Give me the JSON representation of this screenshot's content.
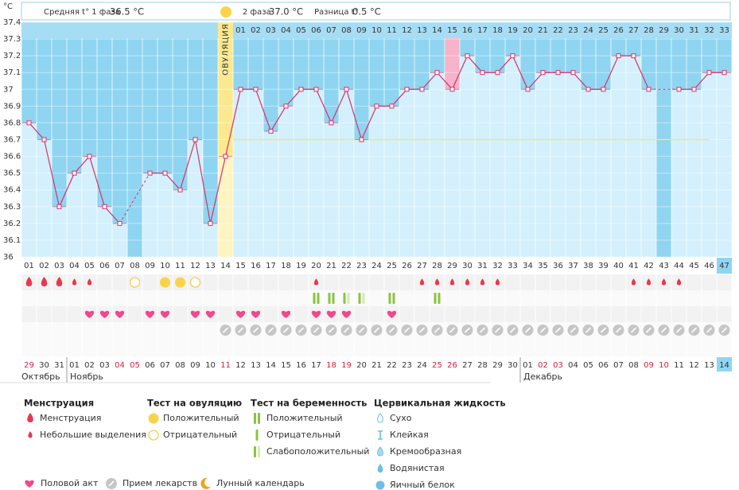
{
  "header": {
    "phase1_label": "Средняя t° 1 фаза",
    "phase1_value": "36.5 °C",
    "phase2_label": "2 фаза",
    "phase2_value": "37.0 °C",
    "diff_label": "Разница t°",
    "diff_value": "0.5 °C"
  },
  "chart_data": {
    "type": "line",
    "y_unit": "°C",
    "ovulation_label": "ОВУЛЯЦИЯ",
    "ylim": [
      36,
      37.4
    ],
    "yticks": [
      36,
      36.1,
      36.2,
      36.3,
      36.4,
      36.5,
      36.6,
      36.7,
      36.8,
      36.9,
      37,
      37.1,
      37.2,
      37.3,
      37.4
    ],
    "coverline": 36.7,
    "ovulation_index": 13,
    "highlight_index": 28,
    "current_index": 46,
    "days": [
      "01",
      "02",
      "03",
      "04",
      "05",
      "06",
      "07",
      "08",
      "09",
      "10",
      "11",
      "12",
      "13",
      "14",
      "15",
      "16",
      "17",
      "18",
      "19",
      "20",
      "21",
      "22",
      "23",
      "24",
      "25",
      "26",
      "27",
      "28",
      "29",
      "30",
      "31",
      "32",
      "33",
      "34",
      "35",
      "36",
      "37",
      "38",
      "39",
      "40",
      "41",
      "42",
      "43",
      "44",
      "45",
      "46",
      "47"
    ],
    "phase2_days": [
      "01",
      "02",
      "03",
      "04",
      "05",
      "06",
      "07",
      "08",
      "09",
      "10",
      "11",
      "12",
      "13",
      "14",
      "15",
      "16",
      "17",
      "18",
      "19",
      "20",
      "21",
      "22",
      "23",
      "24",
      "25",
      "26",
      "27",
      "28",
      "29",
      "30",
      "31",
      "32",
      "33"
    ],
    "series": [
      {
        "name": "t°",
        "color": "#d8306a",
        "values": [
          36.8,
          36.7,
          36.3,
          36.5,
          36.6,
          36.3,
          36.2,
          null,
          36.5,
          36.5,
          36.4,
          36.7,
          36.2,
          36.6,
          37.0,
          37.0,
          36.75,
          36.9,
          37.0,
          37.0,
          36.8,
          37.0,
          36.7,
          36.9,
          36.9,
          37.0,
          37.0,
          37.1,
          37.0,
          37.2,
          37.1,
          37.1,
          37.2,
          37.0,
          37.1,
          37.1,
          37.1,
          37.0,
          37.0,
          37.2,
          37.2,
          37.0,
          null,
          37.0,
          37.0,
          37.1,
          37.1
        ]
      }
    ],
    "months": [
      {
        "name": "Октябрь",
        "dates": [
          "29",
          "30",
          "31"
        ],
        "red": [
          0
        ]
      },
      {
        "name": "Ноябрь",
        "dates": [
          "01",
          "02",
          "03",
          "04",
          "05",
          "06",
          "07",
          "08",
          "09",
          "10",
          "11",
          "12",
          "13",
          "14",
          "15",
          "16",
          "17",
          "18",
          "19",
          "20",
          "21",
          "22",
          "23",
          "24",
          "25",
          "26",
          "27",
          "28",
          "29",
          "30"
        ],
        "red": [
          3,
          4,
          10,
          17,
          18,
          24,
          25
        ]
      },
      {
        "name": "Декабрь",
        "dates": [
          "01",
          "02",
          "03",
          "04",
          "05",
          "06",
          "07",
          "08",
          "09",
          "10",
          "11",
          "12",
          "13",
          "14"
        ],
        "red": [
          1,
          2,
          8,
          9
        ]
      }
    ],
    "marks": {
      "menstruation": [
        0,
        1,
        2
      ],
      "spotting": [
        3,
        4,
        19,
        26,
        27,
        28,
        29,
        30,
        31,
        40,
        41,
        42,
        43
      ],
      "ovulation_positive": [
        9,
        10
      ],
      "ovulation_negative": [
        7,
        11
      ],
      "pregnancy_positive": [
        19,
        20,
        24,
        27
      ],
      "pregnancy_weak": [
        21,
        22
      ],
      "intercourse": [
        4,
        5,
        6,
        8,
        9,
        11,
        12,
        14,
        15,
        17,
        19,
        20,
        21,
        24
      ],
      "medication": [
        13,
        14,
        15,
        16,
        17,
        18,
        19,
        20,
        21,
        22,
        23,
        24,
        25,
        26,
        27,
        28,
        29,
        30,
        31,
        32,
        33,
        34,
        35,
        36,
        37,
        38,
        39,
        40,
        41,
        42,
        43,
        44,
        45,
        46
      ]
    }
  },
  "legend": {
    "groups": [
      {
        "title": "Менструация",
        "items": [
          "Менструация",
          "Небольшие выделения"
        ]
      },
      {
        "title": "Тест на овуляцию",
        "items": [
          "Положительный",
          "Отрицательный"
        ]
      },
      {
        "title": "Тест на беременность",
        "items": [
          "Положительный",
          "Отрицательный",
          "Слабоположительный"
        ]
      },
      {
        "title": "Цервикальная жидкость",
        "items": [
          "Сухо",
          "Клейкая",
          "Кремообразная",
          "Водянистая",
          "Яичный белок"
        ]
      }
    ],
    "bottom": [
      "Половой акт",
      "Прием лекарств",
      "Лунный календарь"
    ]
  }
}
